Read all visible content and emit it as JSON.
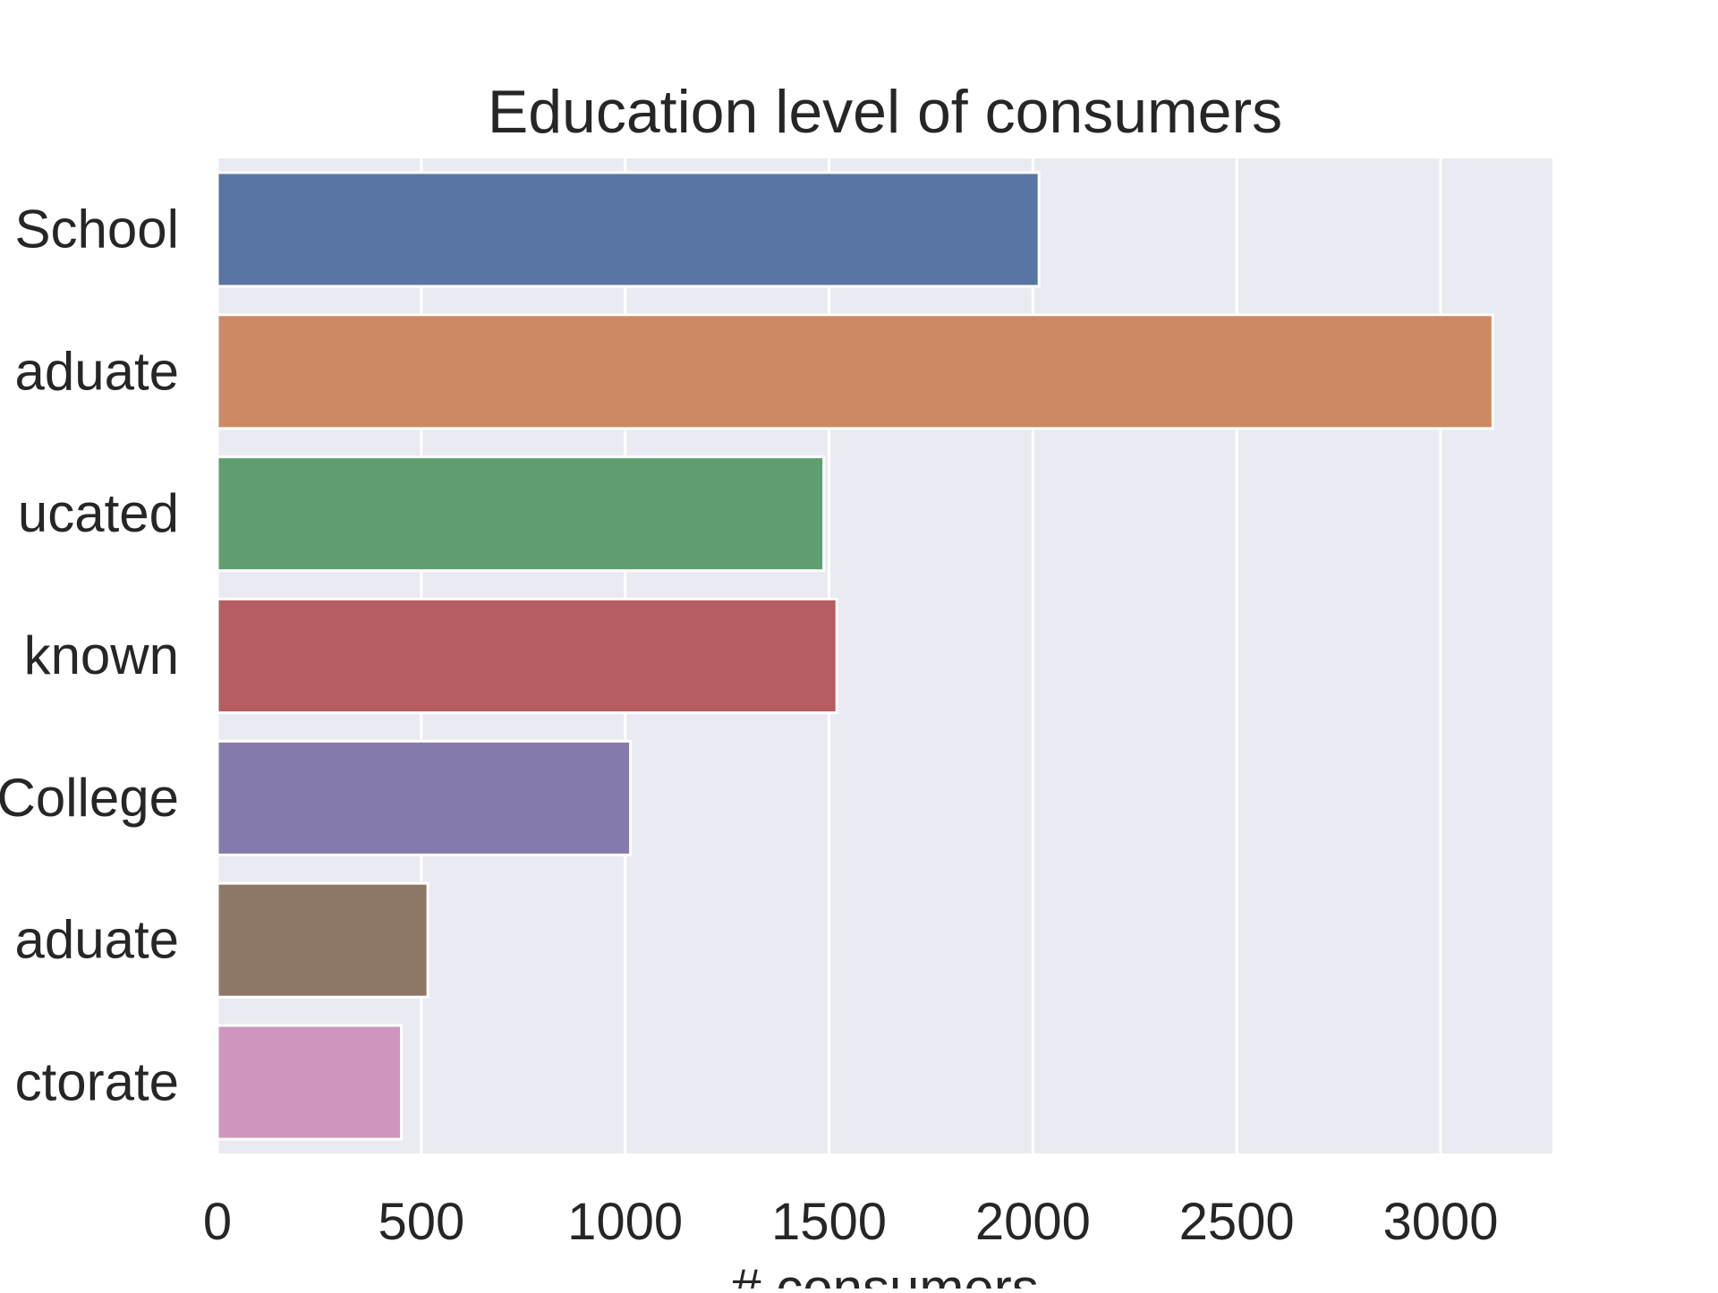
{
  "chart_data": {
    "type": "bar",
    "orientation": "horizontal",
    "title": "Education level of consumers",
    "xlabel": "# consumers",
    "ylabel": "",
    "categories": [
      "School",
      "aduate",
      "ucated",
      "known",
      "College",
      "aduate",
      "ctorate"
    ],
    "values": [
      2015,
      3128,
      1487,
      1519,
      1013,
      516,
      451
    ],
    "colors": [
      "#5975a4",
      "#cc8963",
      "#5f9e6e",
      "#b55d60",
      "#857aab",
      "#8d7866",
      "#d095bf"
    ],
    "xlim": [
      0,
      3300
    ],
    "xticks": [
      0,
      500,
      1000,
      1500,
      2000,
      2500,
      3000
    ],
    "xtick_labels": [
      "0",
      "500",
      "1000",
      "1500",
      "2000",
      "2500",
      "3000"
    ],
    "grid": true,
    "background": "#eaeaf2",
    "grid_color": "#ffffff",
    "legend": "none"
  }
}
